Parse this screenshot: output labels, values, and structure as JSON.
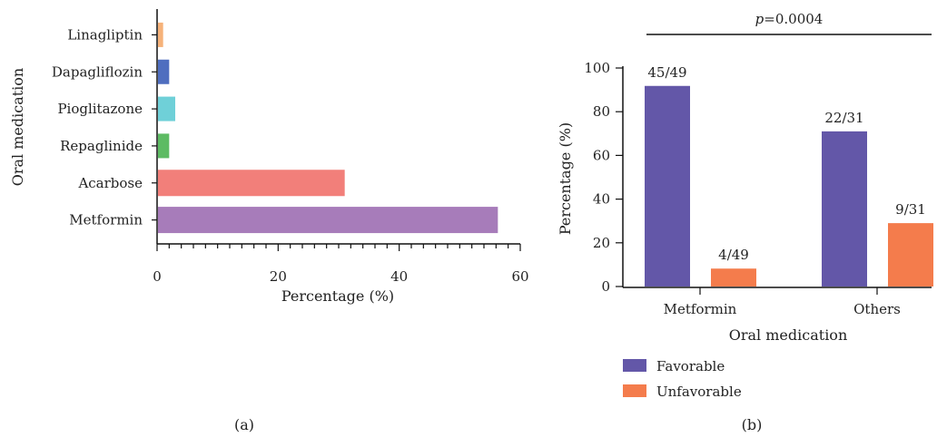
{
  "chart_data": [
    {
      "type": "bar",
      "orientation": "horizontal",
      "panel_label": "(a)",
      "categories": [
        "Linagliptin",
        "Dapagliflozin",
        "Pioglitazone",
        "Repaglinide",
        "Acarbose",
        "Metformin"
      ],
      "values": [
        1,
        2,
        3,
        2,
        31,
        56.3
      ],
      "colors": [
        "#f6b27a",
        "#4f6ebf",
        "#6fd0d8",
        "#5dbb63",
        "#f27f7a",
        "#a77cba"
      ],
      "xlabel": "Percentage (%)",
      "ylabel": "Oral medication",
      "xlim": [
        0,
        60
      ],
      "xticks": [
        0,
        20,
        40,
        60
      ],
      "xtick_labels": [
        "0",
        "20",
        "40",
        "60"
      ],
      "grid": false
    },
    {
      "type": "bar",
      "orientation": "vertical",
      "panel_label": "(b)",
      "categories": [
        "Metformin",
        "Others"
      ],
      "series": [
        {
          "name": "Favorable",
          "values": [
            91.8,
            71.0
          ],
          "labels": [
            "45/49",
            "22/31"
          ],
          "color": "#6357a8"
        },
        {
          "name": "Unfavorable",
          "values": [
            8.2,
            29.0
          ],
          "labels": [
            "4/49",
            "9/31"
          ],
          "color": "#f47c4c"
        }
      ],
      "xlabel": "Oral medication",
      "ylabel": "Percentage (%)",
      "ylim": [
        0,
        100
      ],
      "yticks": [
        0,
        20,
        40,
        60,
        80,
        100
      ],
      "ytick_labels": [
        "0",
        "20",
        "40",
        "60",
        "80",
        "100"
      ],
      "significance": {
        "prefix": "p",
        "value": "=0.0004"
      },
      "legend": "bottom-left",
      "grid": false
    }
  ]
}
